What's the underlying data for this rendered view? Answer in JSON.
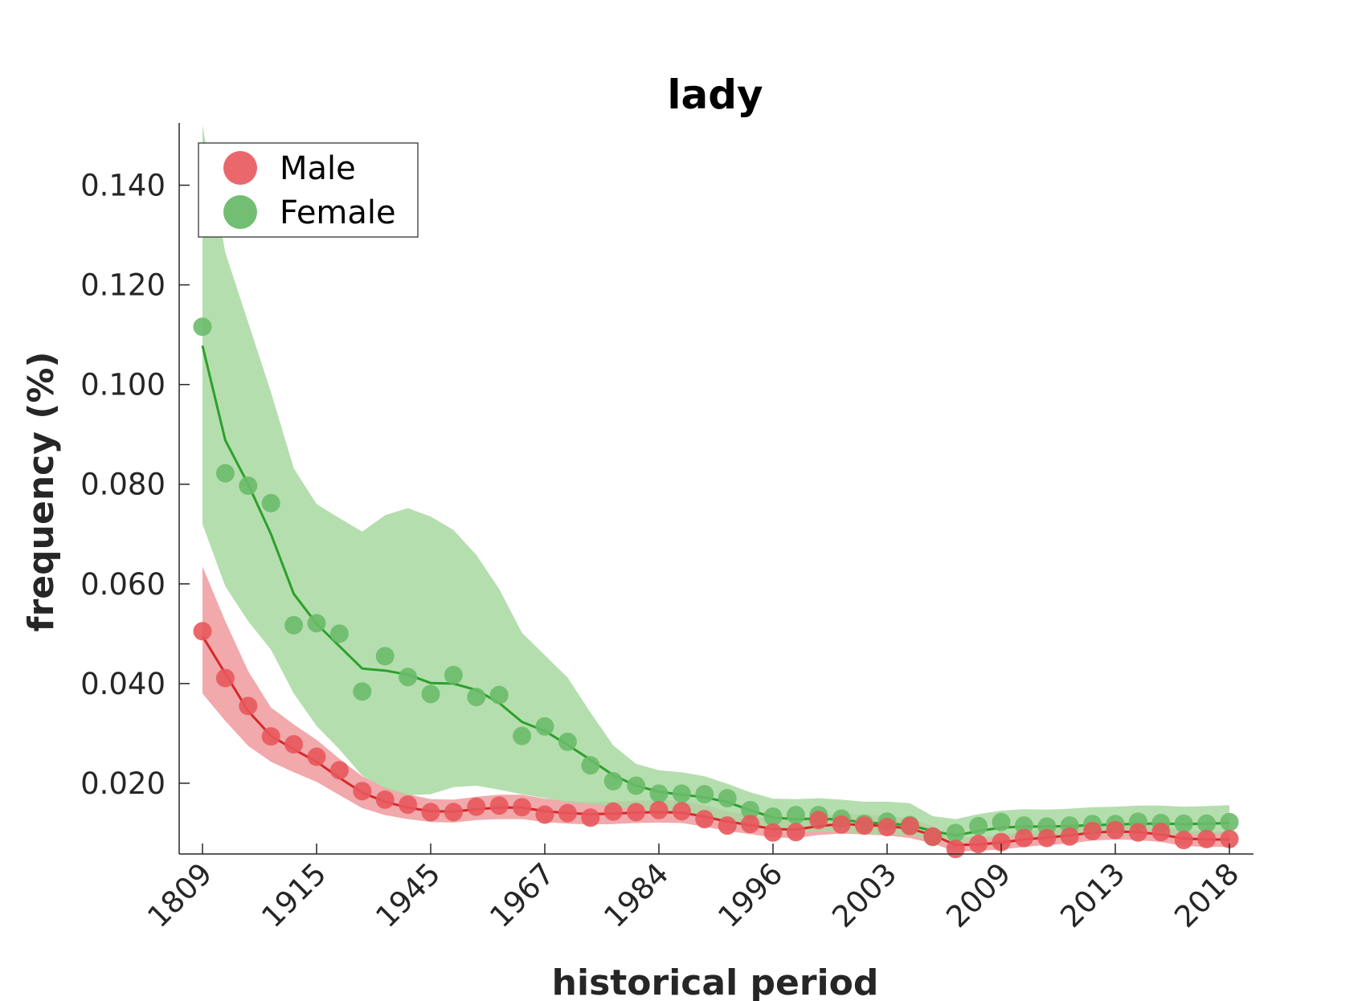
{
  "chart_data": {
    "type": "line",
    "title": "lady",
    "xlabel": "historical period",
    "ylabel": "frequency (%)",
    "x_tick_labels": [
      "1809",
      "1915",
      "1945",
      "1967",
      "1984",
      "1996",
      "2003",
      "2009",
      "2013",
      "2018"
    ],
    "y_tick_labels": [
      "0.020",
      "0.040",
      "0.060",
      "0.080",
      "0.100",
      "0.120",
      "0.140"
    ],
    "y_ticks": [
      0.02,
      0.04,
      0.06,
      0.08,
      0.1,
      0.12,
      0.14
    ],
    "ylim": [
      0.0058,
      0.1525
    ],
    "n_periods": 46,
    "legend": {
      "position": "top-left"
    },
    "grid": false,
    "series": [
      {
        "name": "Male",
        "color": "#d62728",
        "marker_color": "#e8585c",
        "band_color": "#f0a0a2",
        "points": [
          0.0505,
          0.0411,
          0.0355,
          0.0294,
          0.0278,
          0.0253,
          0.0226,
          0.0184,
          0.0167,
          0.0157,
          0.0142,
          0.0142,
          0.0153,
          0.0155,
          0.0152,
          0.0137,
          0.014,
          0.0131,
          0.0143,
          0.0142,
          0.0146,
          0.0144,
          0.0128,
          0.0115,
          0.0118,
          0.0101,
          0.0102,
          0.0126,
          0.0117,
          0.0115,
          0.0112,
          0.0114,
          0.0093,
          0.0068,
          0.0078,
          0.0082,
          0.009,
          0.009,
          0.0093,
          0.0104,
          0.0106,
          0.0101,
          0.0102,
          0.0086,
          0.0088,
          0.0088
        ],
        "smooth": [
          0.0495,
          0.042,
          0.0345,
          0.0295,
          0.0268,
          0.0243,
          0.0211,
          0.0181,
          0.0163,
          0.0151,
          0.0144,
          0.0143,
          0.0148,
          0.0151,
          0.0151,
          0.0144,
          0.014,
          0.0138,
          0.0139,
          0.0141,
          0.0142,
          0.0141,
          0.0133,
          0.0123,
          0.0116,
          0.0108,
          0.0107,
          0.0114,
          0.0118,
          0.0116,
          0.0114,
          0.0109,
          0.0096,
          0.0076,
          0.0077,
          0.0081,
          0.0087,
          0.0091,
          0.0095,
          0.0101,
          0.0103,
          0.0102,
          0.0097,
          0.0089,
          0.0087,
          0.0087
        ],
        "lower": [
          0.038,
          0.0325,
          0.0275,
          0.0243,
          0.0222,
          0.0203,
          0.0176,
          0.015,
          0.0136,
          0.0128,
          0.0122,
          0.0121,
          0.0126,
          0.0128,
          0.0128,
          0.0122,
          0.0119,
          0.0117,
          0.0118,
          0.012,
          0.0121,
          0.012,
          0.0113,
          0.0104,
          0.0098,
          0.0091,
          0.009,
          0.0096,
          0.0099,
          0.0097,
          0.0095,
          0.009,
          0.0079,
          0.0063,
          0.0064,
          0.0067,
          0.0072,
          0.0076,
          0.0079,
          0.0085,
          0.0087,
          0.0086,
          0.0082,
          0.0074,
          0.0072,
          0.0072
        ],
        "upper": [
          0.0635,
          0.0525,
          0.0425,
          0.0352,
          0.0318,
          0.0287,
          0.0249,
          0.0214,
          0.0192,
          0.0178,
          0.0168,
          0.0167,
          0.0173,
          0.0177,
          0.0177,
          0.0169,
          0.0164,
          0.0162,
          0.0163,
          0.0165,
          0.0166,
          0.0165,
          0.0156,
          0.0144,
          0.0136,
          0.0127,
          0.0126,
          0.0134,
          0.0139,
          0.0137,
          0.0135,
          0.0129,
          0.0114,
          0.0091,
          0.0092,
          0.0096,
          0.0103,
          0.0108,
          0.0112,
          0.0119,
          0.0121,
          0.012,
          0.0114,
          0.0105,
          0.0103,
          0.0103
        ]
      },
      {
        "name": "Female",
        "color": "#2ca02c",
        "marker_color": "#6abb6a",
        "band_color": "#a8d8a0",
        "points": [
          0.1116,
          0.0822,
          0.0797,
          0.0762,
          0.0517,
          0.0521,
          0.05,
          0.0384,
          0.0455,
          0.0413,
          0.0379,
          0.0417,
          0.0373,
          0.0377,
          0.0295,
          0.0314,
          0.0283,
          0.0236,
          0.0204,
          0.0195,
          0.0179,
          0.0179,
          0.0178,
          0.017,
          0.0146,
          0.0133,
          0.0136,
          0.0136,
          0.0129,
          0.0119,
          0.0123,
          0.0116,
          0.0092,
          0.01,
          0.0114,
          0.0122,
          0.0115,
          0.0113,
          0.0115,
          0.0118,
          0.0118,
          0.0123,
          0.012,
          0.0119,
          0.0119,
          0.0122
        ],
        "smooth": [
          0.1078,
          0.0888,
          0.08,
          0.07,
          0.058,
          0.052,
          0.0475,
          0.043,
          0.0426,
          0.0418,
          0.0401,
          0.04,
          0.0387,
          0.0361,
          0.0323,
          0.0305,
          0.0277,
          0.0247,
          0.0216,
          0.0195,
          0.0183,
          0.0177,
          0.0172,
          0.0162,
          0.0146,
          0.0131,
          0.0128,
          0.0129,
          0.0127,
          0.0121,
          0.0119,
          0.0116,
          0.0104,
          0.0095,
          0.0104,
          0.0111,
          0.0113,
          0.0113,
          0.0114,
          0.0116,
          0.0117,
          0.0119,
          0.0119,
          0.0118,
          0.0119,
          0.012
        ],
        "lower": [
          0.072,
          0.0595,
          0.0525,
          0.0468,
          0.038,
          0.0315,
          0.0268,
          0.0215,
          0.019,
          0.0176,
          0.0178,
          0.0192,
          0.0195,
          0.0187,
          0.0178,
          0.017,
          0.0162,
          0.0158,
          0.0153,
          0.0147,
          0.0142,
          0.0138,
          0.0134,
          0.0127,
          0.0115,
          0.0103,
          0.0101,
          0.0103,
          0.0103,
          0.0098,
          0.0097,
          0.0095,
          0.0086,
          0.0079,
          0.0086,
          0.0092,
          0.0093,
          0.0093,
          0.0094,
          0.0096,
          0.0097,
          0.0098,
          0.0098,
          0.0097,
          0.0098,
          0.0099
        ],
        "upper": [
          0.152,
          0.1265,
          0.1125,
          0.0985,
          0.0832,
          0.076,
          0.0732,
          0.0705,
          0.0738,
          0.0752,
          0.0735,
          0.0708,
          0.0658,
          0.059,
          0.0502,
          0.0457,
          0.0412,
          0.0342,
          0.0276,
          0.0239,
          0.0226,
          0.0222,
          0.0214,
          0.0199,
          0.0182,
          0.0169,
          0.0168,
          0.017,
          0.0167,
          0.0163,
          0.0163,
          0.016,
          0.0134,
          0.0128,
          0.0138,
          0.0145,
          0.0148,
          0.0147,
          0.0149,
          0.0152,
          0.0153,
          0.0155,
          0.0155,
          0.0153,
          0.0154,
          0.0156
        ]
      }
    ]
  }
}
